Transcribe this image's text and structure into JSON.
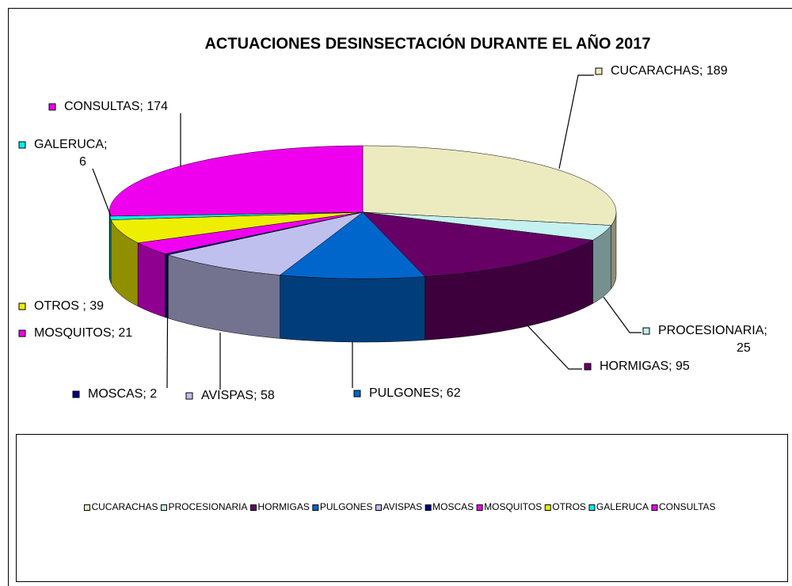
{
  "chart_data": {
    "type": "pie3d",
    "title": "ACTUACIONES DESINSECTACIÓN DURANTE EL AÑO 2017",
    "categories": [
      "CUCARACHAS",
      "PROCESIONARIA",
      "HORMIGAS",
      "PULGONES",
      "AVISPAS",
      "MOSCAS",
      "MOSQUITOS",
      "OTROS",
      "GALERUCA",
      "CONSULTAS"
    ],
    "values": [
      189,
      25,
      95,
      62,
      58,
      2,
      21,
      39,
      6,
      174
    ],
    "value_labels": [
      "CUCARACHAS; 189",
      "PROCESIONARIA; 25",
      "HORMIGAS; 95",
      "PULGONES; 62",
      "AVISPAS; 58",
      "MOSCAS; 2",
      "MOSQUITOS; 21",
      "OTROS ; 39",
      "GALERUCA; 6",
      "CONSULTAS; 174"
    ],
    "colors": [
      "#ecebc0",
      "#c4f0f0",
      "#660066",
      "#0066cc",
      "#c0c0ef",
      "#000080",
      "#f000f0",
      "#eeee00",
      "#00f0f0",
      "#ee00ee"
    ],
    "legend": "bottom"
  }
}
